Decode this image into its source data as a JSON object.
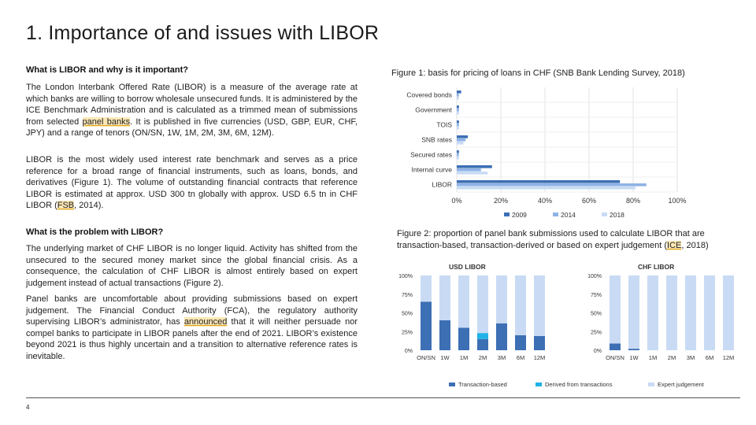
{
  "slide": {
    "title": "1. Importance of and issues with LIBOR",
    "page_number": "4"
  },
  "left": {
    "h1": "What is LIBOR and why is it important?",
    "p1_a": "The London Interbank Offered Rate (LIBOR) is a measure of the average rate at which banks are willing to borrow wholesale unsecured funds. It is administered by the ICE Benchmark Administration and is calculated as a trimmed mean of submissions from selected ",
    "p1_link": "panel banks",
    "p1_b": ". It is published in five currencies (USD, GBP, EUR, CHF, JPY) and a range of tenors (ON/SN, 1W, 1M, 2M, 3M, 6M, 12M).",
    "p2_a": "LIBOR is the most widely used interest rate benchmark and serves as a price reference for a broad range of financial instruments, such as loans, bonds, and derivatives (Figure 1). The volume of outstanding financial contracts that reference LIBOR is estimated at approx. USD 300 tn globally with approx. USD 6.5 tn in CHF LIBOR (",
    "p2_link": "FSB",
    "p2_b": ", 2014).",
    "h2": "What is the problem with LIBOR?",
    "p3": "The underlying market of CHF LIBOR is no longer liquid. Activity has shifted from the unsecured to the secured money market since the global financial crisis. As a consequence, the calculation of CHF LIBOR is almost entirely based on expert judgement instead of actual transactions (Figure 2).",
    "p4_a": "Panel banks are uncomfortable about providing submissions based on expert judgement. The Financial Conduct Authority (FCA), the regulatory authority supervising LIBOR’s administrator, has ",
    "p4_link": "announced",
    "p4_b": " that it will neither persuade nor compel banks to participate in LIBOR panels after the end of 2021. LIBOR’s existence beyond 2021 is thus highly uncertain and a transition to alternative reference rates is inevitable."
  },
  "right": {
    "fig1_caption": "Figure 1: basis for pricing of loans in CHF (SNB Bank Lending Survey, 2018)",
    "fig2_caption_a": "Figure 2: proportion of panel bank submissions used to calculate LIBOR that are transaction-based, transaction-derived or based on expert judgement (",
    "fig2_caption_link": "ICE",
    "fig2_caption_b": ", 2018)"
  },
  "colors": {
    "dark": "#3c6fb4",
    "mid": "#8fb3e6",
    "light": "#c9dbf4",
    "cyan": "#1fb3e8",
    "highlight": "#fbe7b5",
    "link_underline": "#e0a21b"
  },
  "chart_data": [
    {
      "type": "bar",
      "orientation": "horizontal",
      "title": "",
      "categories": [
        "Covered bonds",
        "Government",
        "TOIS",
        "SNB rates",
        "Secured rates",
        "Internal curve",
        "LIBOR"
      ],
      "series": [
        {
          "name": "2009",
          "values": [
            2,
            1,
            1,
            5,
            1,
            16,
            74
          ]
        },
        {
          "name": "2014",
          "values": [
            1,
            1,
            1,
            4,
            1,
            11,
            86
          ]
        },
        {
          "name": "2018",
          "values": [
            1,
            1,
            1,
            3,
            1,
            14,
            81
          ]
        }
      ],
      "xticks": [
        "0%",
        "20%",
        "40%",
        "60%",
        "80%",
        "100%"
      ],
      "xlim": [
        0,
        100
      ],
      "legend": "bottom"
    },
    {
      "type": "bar",
      "stacked": true,
      "title": "USD LIBOR",
      "categories": [
        "ON/SN",
        "1W",
        "1M",
        "2M",
        "3M",
        "6M",
        "12M"
      ],
      "series": [
        {
          "name": "Transaction-based",
          "values": [
            65,
            40,
            30,
            15,
            36,
            20,
            19
          ]
        },
        {
          "name": "Derived from transactions",
          "values": [
            0,
            0,
            0,
            8,
            0,
            0,
            0
          ]
        },
        {
          "name": "Expert judgement",
          "values": [
            35,
            60,
            70,
            77,
            64,
            80,
            81
          ]
        }
      ],
      "yticks": [
        "100%",
        "75%",
        "50%",
        "25%",
        "0%"
      ],
      "ylim": [
        0,
        100
      ],
      "legend": "bottom"
    },
    {
      "type": "bar",
      "stacked": true,
      "title": "CHF LIBOR",
      "categories": [
        "ON/SN",
        "1W",
        "1M",
        "2M",
        "3M",
        "6M",
        "12M"
      ],
      "series": [
        {
          "name": "Transaction-based",
          "values": [
            9,
            2,
            0,
            0,
            0,
            0,
            0
          ]
        },
        {
          "name": "Derived from transactions",
          "values": [
            0,
            0,
            0,
            0,
            0,
            0,
            0
          ]
        },
        {
          "name": "Expert judgement",
          "values": [
            91,
            98,
            100,
            100,
            100,
            100,
            100
          ]
        }
      ],
      "yticks": [
        "100%",
        "75%",
        "50%",
        "25%",
        "0%"
      ],
      "ylim": [
        0,
        100
      ],
      "legend": [
        "Transaction-based",
        "Derived from transactions",
        "Expert judgement"
      ]
    }
  ]
}
